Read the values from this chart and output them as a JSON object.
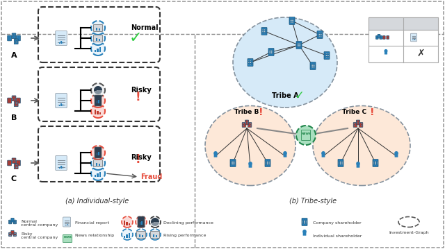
{
  "fig_width": 6.4,
  "fig_height": 3.59,
  "dpi": 100,
  "bg_color": "#ffffff",
  "left_panel_title": "(a) Individual-style",
  "right_panel_title": "(b) Tribe-style",
  "section_A_label": "A",
  "section_B_label": "B",
  "section_C_label": "C",
  "normal_text": "Normal",
  "risky_text": "Risky",
  "fraud_text": "Fraud",
  "tribe_a_text": "Tribe A",
  "tribe_b_text": "Tribe B",
  "tribe_c_text": "Tribe C",
  "check_color": "#2ecc40",
  "exclaim_color": "#e74c3c",
  "fraud_color": "#e74c3c",
  "blue_company_color": "#2980b9",
  "red_company_color": "#c0392b",
  "blue_circle_color": "#2980b9",
  "red_circle_color": "#e74c3c",
  "tribe_a_fill": "#d6eaf8",
  "tribe_bc_fill": "#fde8d8",
  "node_table_header_color": "#c0c0c0",
  "legend_items": [
    "Normal central company",
    "Risky central company",
    "Financial report",
    "News relationship",
    "Declining performance",
    "Rising performance",
    "Company shareholder",
    "Individual shareholder",
    "Investment-Graph"
  ]
}
